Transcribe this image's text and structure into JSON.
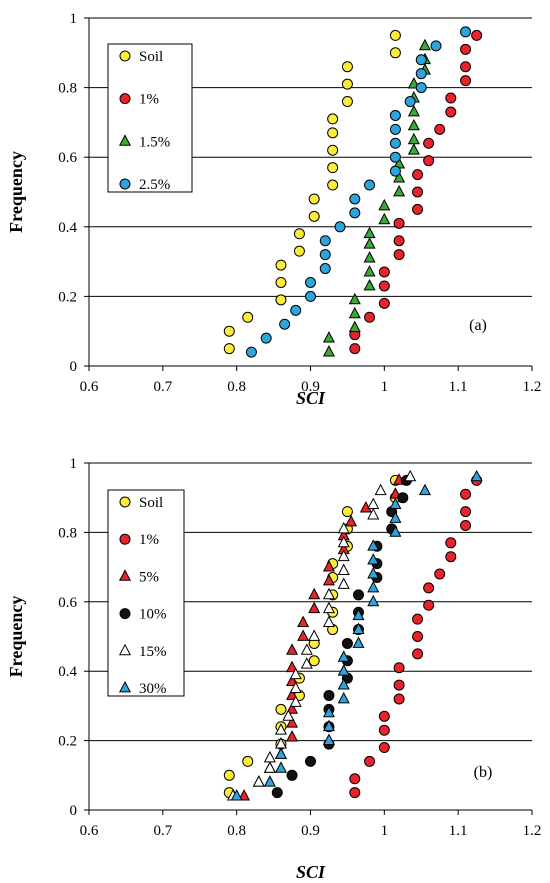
{
  "chart_data": [
    {
      "type": "scatter",
      "panel_label": "(a)",
      "xlabel": "SCI",
      "ylabel": "Frequency",
      "xlim": [
        0.6,
        1.2
      ],
      "ylim": [
        0,
        1
      ],
      "xticks": [
        "0.6",
        "0.7",
        "0.8",
        "0.9",
        "1",
        "1.1",
        "1.2"
      ],
      "yticks": [
        "0",
        "0.2",
        "0.4",
        "0.6",
        "0.8",
        "1"
      ],
      "grid": "horizontal",
      "legend_position": "top-left",
      "series": [
        {
          "name": "Soil",
          "marker": "circle",
          "color": "#ffeb3b",
          "points": [
            [
              0.79,
              0.05
            ],
            [
              0.79,
              0.1
            ],
            [
              0.815,
              0.14
            ],
            [
              0.86,
              0.19
            ],
            [
              0.86,
              0.24
            ],
            [
              0.86,
              0.29
            ],
            [
              0.885,
              0.33
            ],
            [
              0.885,
              0.38
            ],
            [
              0.905,
              0.43
            ],
            [
              0.905,
              0.48
            ],
            [
              0.93,
              0.52
            ],
            [
              0.93,
              0.57
            ],
            [
              0.93,
              0.62
            ],
            [
              0.93,
              0.67
            ],
            [
              0.93,
              0.71
            ],
            [
              0.95,
              0.76
            ],
            [
              0.95,
              0.81
            ],
            [
              0.95,
              0.86
            ],
            [
              1.015,
              0.9
            ],
            [
              1.015,
              0.95
            ]
          ]
        },
        {
          "name": "1%",
          "marker": "circle",
          "color": "#e8232a",
          "points": [
            [
              0.96,
              0.05
            ],
            [
              0.96,
              0.09
            ],
            [
              0.98,
              0.14
            ],
            [
              1.0,
              0.18
            ],
            [
              1.0,
              0.23
            ],
            [
              1.0,
              0.27
            ],
            [
              1.02,
              0.32
            ],
            [
              1.02,
              0.36
            ],
            [
              1.02,
              0.41
            ],
            [
              1.045,
              0.45
            ],
            [
              1.045,
              0.5
            ],
            [
              1.045,
              0.55
            ],
            [
              1.06,
              0.59
            ],
            [
              1.06,
              0.64
            ],
            [
              1.075,
              0.68
            ],
            [
              1.09,
              0.73
            ],
            [
              1.09,
              0.77
            ],
            [
              1.11,
              0.82
            ],
            [
              1.11,
              0.86
            ],
            [
              1.11,
              0.91
            ],
            [
              1.125,
              0.95
            ]
          ]
        },
        {
          "name": "1.5%",
          "marker": "triangle",
          "color": "#3aa935",
          "points": [
            [
              0.925,
              0.04
            ],
            [
              0.925,
              0.08
            ],
            [
              0.96,
              0.11
            ],
            [
              0.96,
              0.15
            ],
            [
              0.96,
              0.19
            ],
            [
              0.98,
              0.23
            ],
            [
              0.98,
              0.27
            ],
            [
              0.98,
              0.31
            ],
            [
              0.98,
              0.35
            ],
            [
              0.98,
              0.38
            ],
            [
              1.0,
              0.42
            ],
            [
              1.0,
              0.46
            ],
            [
              1.02,
              0.5
            ],
            [
              1.02,
              0.54
            ],
            [
              1.02,
              0.58
            ],
            [
              1.04,
              0.62
            ],
            [
              1.04,
              0.65
            ],
            [
              1.04,
              0.69
            ],
            [
              1.04,
              0.73
            ],
            [
              1.04,
              0.77
            ],
            [
              1.04,
              0.81
            ],
            [
              1.055,
              0.85
            ],
            [
              1.055,
              0.88
            ],
            [
              1.055,
              0.92
            ]
          ]
        },
        {
          "name": "2.5%",
          "marker": "circle",
          "color": "#2ea4de",
          "points": [
            [
              0.82,
              0.04
            ],
            [
              0.84,
              0.08
            ],
            [
              0.865,
              0.12
            ],
            [
              0.88,
              0.16
            ],
            [
              0.9,
              0.2
            ],
            [
              0.9,
              0.24
            ],
            [
              0.92,
              0.28
            ],
            [
              0.92,
              0.32
            ],
            [
              0.92,
              0.36
            ],
            [
              0.94,
              0.4
            ],
            [
              0.96,
              0.44
            ],
            [
              0.96,
              0.48
            ],
            [
              0.98,
              0.52
            ],
            [
              1.015,
              0.56
            ],
            [
              1.015,
              0.6
            ],
            [
              1.015,
              0.64
            ],
            [
              1.015,
              0.68
            ],
            [
              1.015,
              0.72
            ],
            [
              1.035,
              0.76
            ],
            [
              1.05,
              0.8
            ],
            [
              1.05,
              0.84
            ],
            [
              1.05,
              0.88
            ],
            [
              1.07,
              0.92
            ],
            [
              1.11,
              0.96
            ]
          ]
        }
      ]
    },
    {
      "type": "scatter",
      "panel_label": "(b)",
      "xlabel": "SCI",
      "ylabel": "Frequency",
      "xlim": [
        0.6,
        1.2
      ],
      "ylim": [
        0,
        1
      ],
      "xticks": [
        "0.6",
        "0.7",
        "0.8",
        "0.9",
        "1",
        "1.1",
        "1.2"
      ],
      "yticks": [
        "0",
        "0.2",
        "0.4",
        "0.6",
        "0.8",
        "1"
      ],
      "grid": "horizontal",
      "legend_position": "top-left",
      "series": [
        {
          "name": "Soil",
          "marker": "circle",
          "color": "#ffeb3b",
          "points": [
            [
              0.79,
              0.05
            ],
            [
              0.79,
              0.1
            ],
            [
              0.815,
              0.14
            ],
            [
              0.86,
              0.19
            ],
            [
              0.86,
              0.24
            ],
            [
              0.86,
              0.29
            ],
            [
              0.885,
              0.33
            ],
            [
              0.885,
              0.38
            ],
            [
              0.905,
              0.43
            ],
            [
              0.905,
              0.48
            ],
            [
              0.93,
              0.52
            ],
            [
              0.93,
              0.57
            ],
            [
              0.93,
              0.62
            ],
            [
              0.93,
              0.67
            ],
            [
              0.93,
              0.71
            ],
            [
              0.95,
              0.76
            ],
            [
              0.95,
              0.81
            ],
            [
              0.95,
              0.86
            ],
            [
              1.015,
              0.9
            ],
            [
              1.015,
              0.95
            ]
          ]
        },
        {
          "name": "1%",
          "marker": "circle",
          "color": "#e8232a",
          "points": [
            [
              0.96,
              0.05
            ],
            [
              0.96,
              0.09
            ],
            [
              0.98,
              0.14
            ],
            [
              1.0,
              0.18
            ],
            [
              1.0,
              0.23
            ],
            [
              1.0,
              0.27
            ],
            [
              1.02,
              0.32
            ],
            [
              1.02,
              0.36
            ],
            [
              1.02,
              0.41
            ],
            [
              1.045,
              0.45
            ],
            [
              1.045,
              0.5
            ],
            [
              1.045,
              0.55
            ],
            [
              1.06,
              0.59
            ],
            [
              1.06,
              0.64
            ],
            [
              1.075,
              0.68
            ],
            [
              1.09,
              0.73
            ],
            [
              1.09,
              0.77
            ],
            [
              1.11,
              0.82
            ],
            [
              1.11,
              0.86
            ],
            [
              1.11,
              0.91
            ],
            [
              1.125,
              0.95
            ]
          ]
        },
        {
          "name": "5%",
          "marker": "triangle",
          "color": "#e8232a",
          "points": [
            [
              0.81,
              0.04
            ],
            [
              0.83,
              0.08
            ],
            [
              0.845,
              0.12
            ],
            [
              0.86,
              0.16
            ],
            [
              0.875,
              0.21
            ],
            [
              0.875,
              0.25
            ],
            [
              0.875,
              0.29
            ],
            [
              0.875,
              0.33
            ],
            [
              0.875,
              0.37
            ],
            [
              0.875,
              0.41
            ],
            [
              0.875,
              0.46
            ],
            [
              0.89,
              0.5
            ],
            [
              0.89,
              0.54
            ],
            [
              0.905,
              0.58
            ],
            [
              0.905,
              0.62
            ],
            [
              0.925,
              0.66
            ],
            [
              0.925,
              0.7
            ],
            [
              0.945,
              0.75
            ],
            [
              0.945,
              0.79
            ],
            [
              0.955,
              0.83
            ],
            [
              0.975,
              0.87
            ],
            [
              1.015,
              0.91
            ],
            [
              1.02,
              0.95
            ]
          ]
        },
        {
          "name": "10%",
          "marker": "circle",
          "color": "#111111",
          "points": [
            [
              0.855,
              0.05
            ],
            [
              0.875,
              0.1
            ],
            [
              0.9,
              0.14
            ],
            [
              0.925,
              0.19
            ],
            [
              0.925,
              0.24
            ],
            [
              0.925,
              0.29
            ],
            [
              0.925,
              0.33
            ],
            [
              0.95,
              0.38
            ],
            [
              0.95,
              0.43
            ],
            [
              0.95,
              0.48
            ],
            [
              0.965,
              0.52
            ],
            [
              0.965,
              0.57
            ],
            [
              0.965,
              0.62
            ],
            [
              0.99,
              0.67
            ],
            [
              0.99,
              0.71
            ],
            [
              0.99,
              0.76
            ],
            [
              1.01,
              0.81
            ],
            [
              1.01,
              0.86
            ],
            [
              1.025,
              0.9
            ],
            [
              1.03,
              0.95
            ]
          ]
        },
        {
          "name": "15%",
          "marker": "triangle",
          "color": "#ffffff",
          "points": [
            [
              0.795,
              0.04
            ],
            [
              0.83,
              0.08
            ],
            [
              0.845,
              0.12
            ],
            [
              0.845,
              0.15
            ],
            [
              0.86,
              0.19
            ],
            [
              0.86,
              0.23
            ],
            [
              0.87,
              0.27
            ],
            [
              0.88,
              0.31
            ],
            [
              0.88,
              0.35
            ],
            [
              0.88,
              0.39
            ],
            [
              0.895,
              0.42
            ],
            [
              0.895,
              0.46
            ],
            [
              0.905,
              0.5
            ],
            [
              0.925,
              0.54
            ],
            [
              0.925,
              0.58
            ],
            [
              0.925,
              0.62
            ],
            [
              0.945,
              0.65
            ],
            [
              0.945,
              0.69
            ],
            [
              0.945,
              0.73
            ],
            [
              0.945,
              0.77
            ],
            [
              0.945,
              0.81
            ],
            [
              0.985,
              0.85
            ],
            [
              0.985,
              0.88
            ],
            [
              0.995,
              0.92
            ],
            [
              1.035,
              0.96
            ]
          ]
        },
        {
          "name": "30%",
          "marker": "triangle",
          "color": "#2ea4de",
          "points": [
            [
              0.8,
              0.04
            ],
            [
              0.845,
              0.08
            ],
            [
              0.86,
              0.12
            ],
            [
              0.86,
              0.16
            ],
            [
              0.925,
              0.2
            ],
            [
              0.925,
              0.24
            ],
            [
              0.925,
              0.28
            ],
            [
              0.945,
              0.32
            ],
            [
              0.945,
              0.36
            ],
            [
              0.945,
              0.4
            ],
            [
              0.945,
              0.44
            ],
            [
              0.965,
              0.48
            ],
            [
              0.965,
              0.52
            ],
            [
              0.965,
              0.56
            ],
            [
              0.985,
              0.6
            ],
            [
              0.985,
              0.64
            ],
            [
              0.985,
              0.68
            ],
            [
              0.985,
              0.72
            ],
            [
              0.985,
              0.76
            ],
            [
              1.015,
              0.8
            ],
            [
              1.015,
              0.84
            ],
            [
              1.015,
              0.88
            ],
            [
              1.055,
              0.92
            ],
            [
              1.125,
              0.96
            ]
          ]
        }
      ]
    }
  ]
}
